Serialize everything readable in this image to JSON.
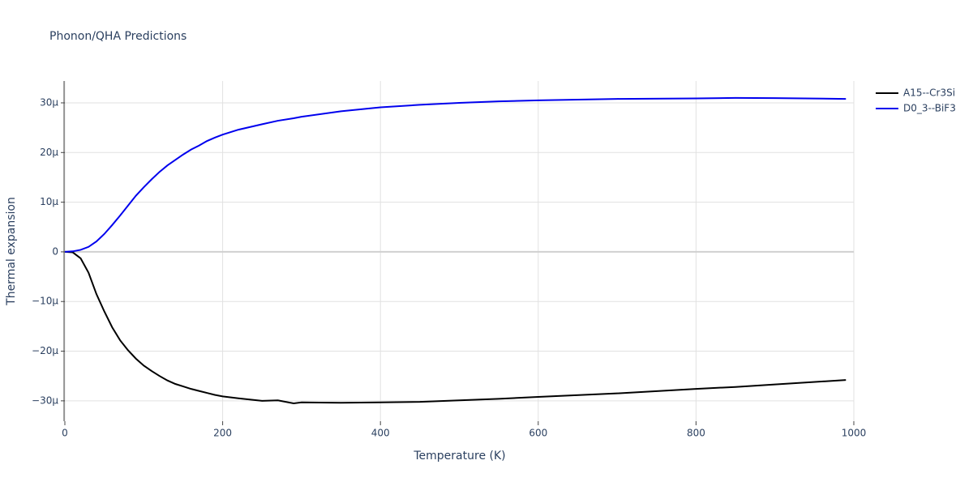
{
  "chart_data": {
    "type": "line",
    "title": "Phonon/QHA Predictions",
    "x_label": "Temperature (K)",
    "y_label": "Thermal expansion",
    "x": [
      0,
      10,
      20,
      30,
      40,
      50,
      60,
      70,
      80,
      90,
      100,
      110,
      120,
      130,
      140,
      150,
      160,
      170,
      180,
      190,
      200,
      220,
      250,
      270,
      290,
      300,
      350,
      400,
      450,
      500,
      550,
      600,
      700,
      800,
      850,
      900,
      990
    ],
    "series": [
      {
        "name": "A15--Cr3Si",
        "color": "#000000",
        "values": [
          0,
          -1e-07,
          -1.3e-06,
          -4.2e-06,
          -8.5e-06,
          -1.2e-05,
          -1.52e-05,
          -1.78e-05,
          -1.98e-05,
          -2.15e-05,
          -2.29e-05,
          -2.4e-05,
          -2.5e-05,
          -2.59e-05,
          -2.66e-05,
          -2.71e-05,
          -2.76e-05,
          -2.8e-05,
          -2.84e-05,
          -2.88e-05,
          -2.91e-05,
          -2.95e-05,
          -3e-05,
          -2.99e-05,
          -3.05e-05,
          -3.03e-05,
          -3.04e-05,
          -3.03e-05,
          -3.02e-05,
          -2.99e-05,
          -2.96e-05,
          -2.92e-05,
          -2.85e-05,
          -2.76e-05,
          -2.72e-05,
          -2.67e-05,
          -2.58e-05
        ]
      },
      {
        "name": "D0_3--BiF3",
        "color": "#0000ee",
        "values": [
          0,
          1e-07,
          4e-07,
          1e-06,
          2.1e-06,
          3.6e-06,
          5.4e-06,
          7.3e-06,
          9.3e-06,
          1.13e-05,
          1.3e-05,
          1.46e-05,
          1.61e-05,
          1.74e-05,
          1.85e-05,
          1.96e-05,
          2.06e-05,
          2.14e-05,
          2.23e-05,
          2.3e-05,
          2.36e-05,
          2.46e-05,
          2.57e-05,
          2.64e-05,
          2.69e-05,
          2.72e-05,
          2.83e-05,
          2.91e-05,
          2.96e-05,
          3e-05,
          3.03e-05,
          3.05e-05,
          3.08e-05,
          3.09e-05,
          3.1e-05,
          3.095e-05,
          3.08e-05
        ]
      }
    ],
    "xlim": [
      0,
      1000
    ],
    "xticks": [
      0,
      200,
      400,
      600,
      800,
      1000
    ],
    "ylim": [
      -3.41e-05,
      3.44e-05
    ],
    "yticks": [
      {
        "value": -3e-05,
        "label": "−30µ"
      },
      {
        "value": -2e-05,
        "label": "−20µ"
      },
      {
        "value": -1e-05,
        "label": "−10µ"
      },
      0,
      {
        "value": 1e-05,
        "label": "10µ"
      },
      {
        "value": 2e-05,
        "label": "20µ"
      },
      {
        "value": 3e-05,
        "label": "30µ"
      }
    ],
    "grid": true,
    "legend": "right"
  }
}
